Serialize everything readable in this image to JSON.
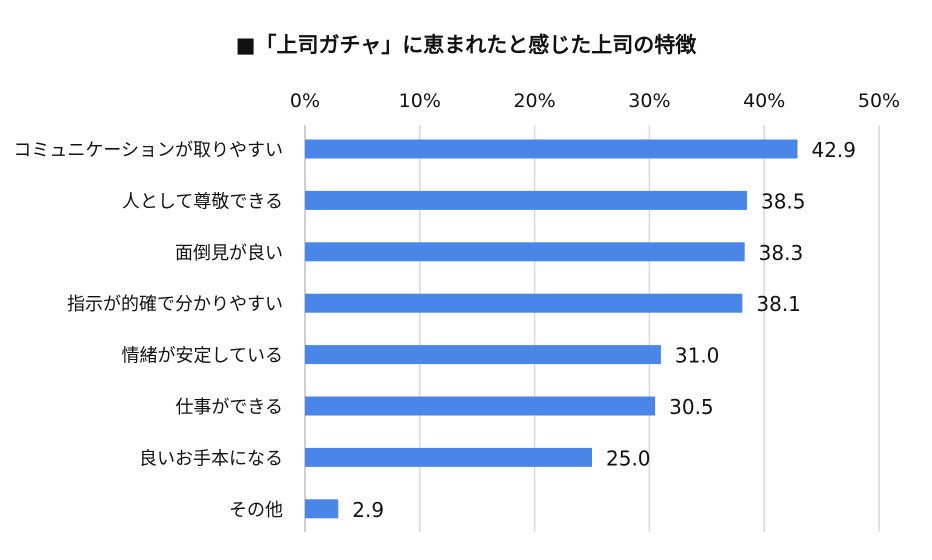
{
  "chart_data": {
    "type": "bar",
    "orientation": "horizontal",
    "title": "■「上司ガチャ」に恵まれたと感じた上司の特徴",
    "xlabel": "",
    "ylabel": "",
    "xlim": [
      0,
      50
    ],
    "x_ticks": [
      0,
      10,
      20,
      30,
      40,
      50
    ],
    "x_tick_labels": [
      "0%",
      "10%",
      "20%",
      "30%",
      "40%",
      "50%"
    ],
    "x_axis_position": "top",
    "grid": true,
    "legend": "none",
    "categories": [
      "コミュニケーションが取りやすい",
      "人として尊敬できる",
      "面倒見が良い",
      "指示が的確で分かりやすい",
      "情緒が安定している",
      "仕事ができる",
      "良いお手本になる",
      "その他"
    ],
    "values": [
      42.9,
      38.5,
      38.3,
      38.1,
      31.0,
      30.5,
      25.0,
      2.9
    ],
    "value_labels": [
      "42.9",
      "38.5",
      "38.3",
      "38.1",
      "31.0",
      "30.5",
      "25.0",
      "2.9"
    ],
    "colors": {
      "bar": "#4a86e8",
      "grid": "#d9d9d9",
      "text": "#111111"
    }
  }
}
